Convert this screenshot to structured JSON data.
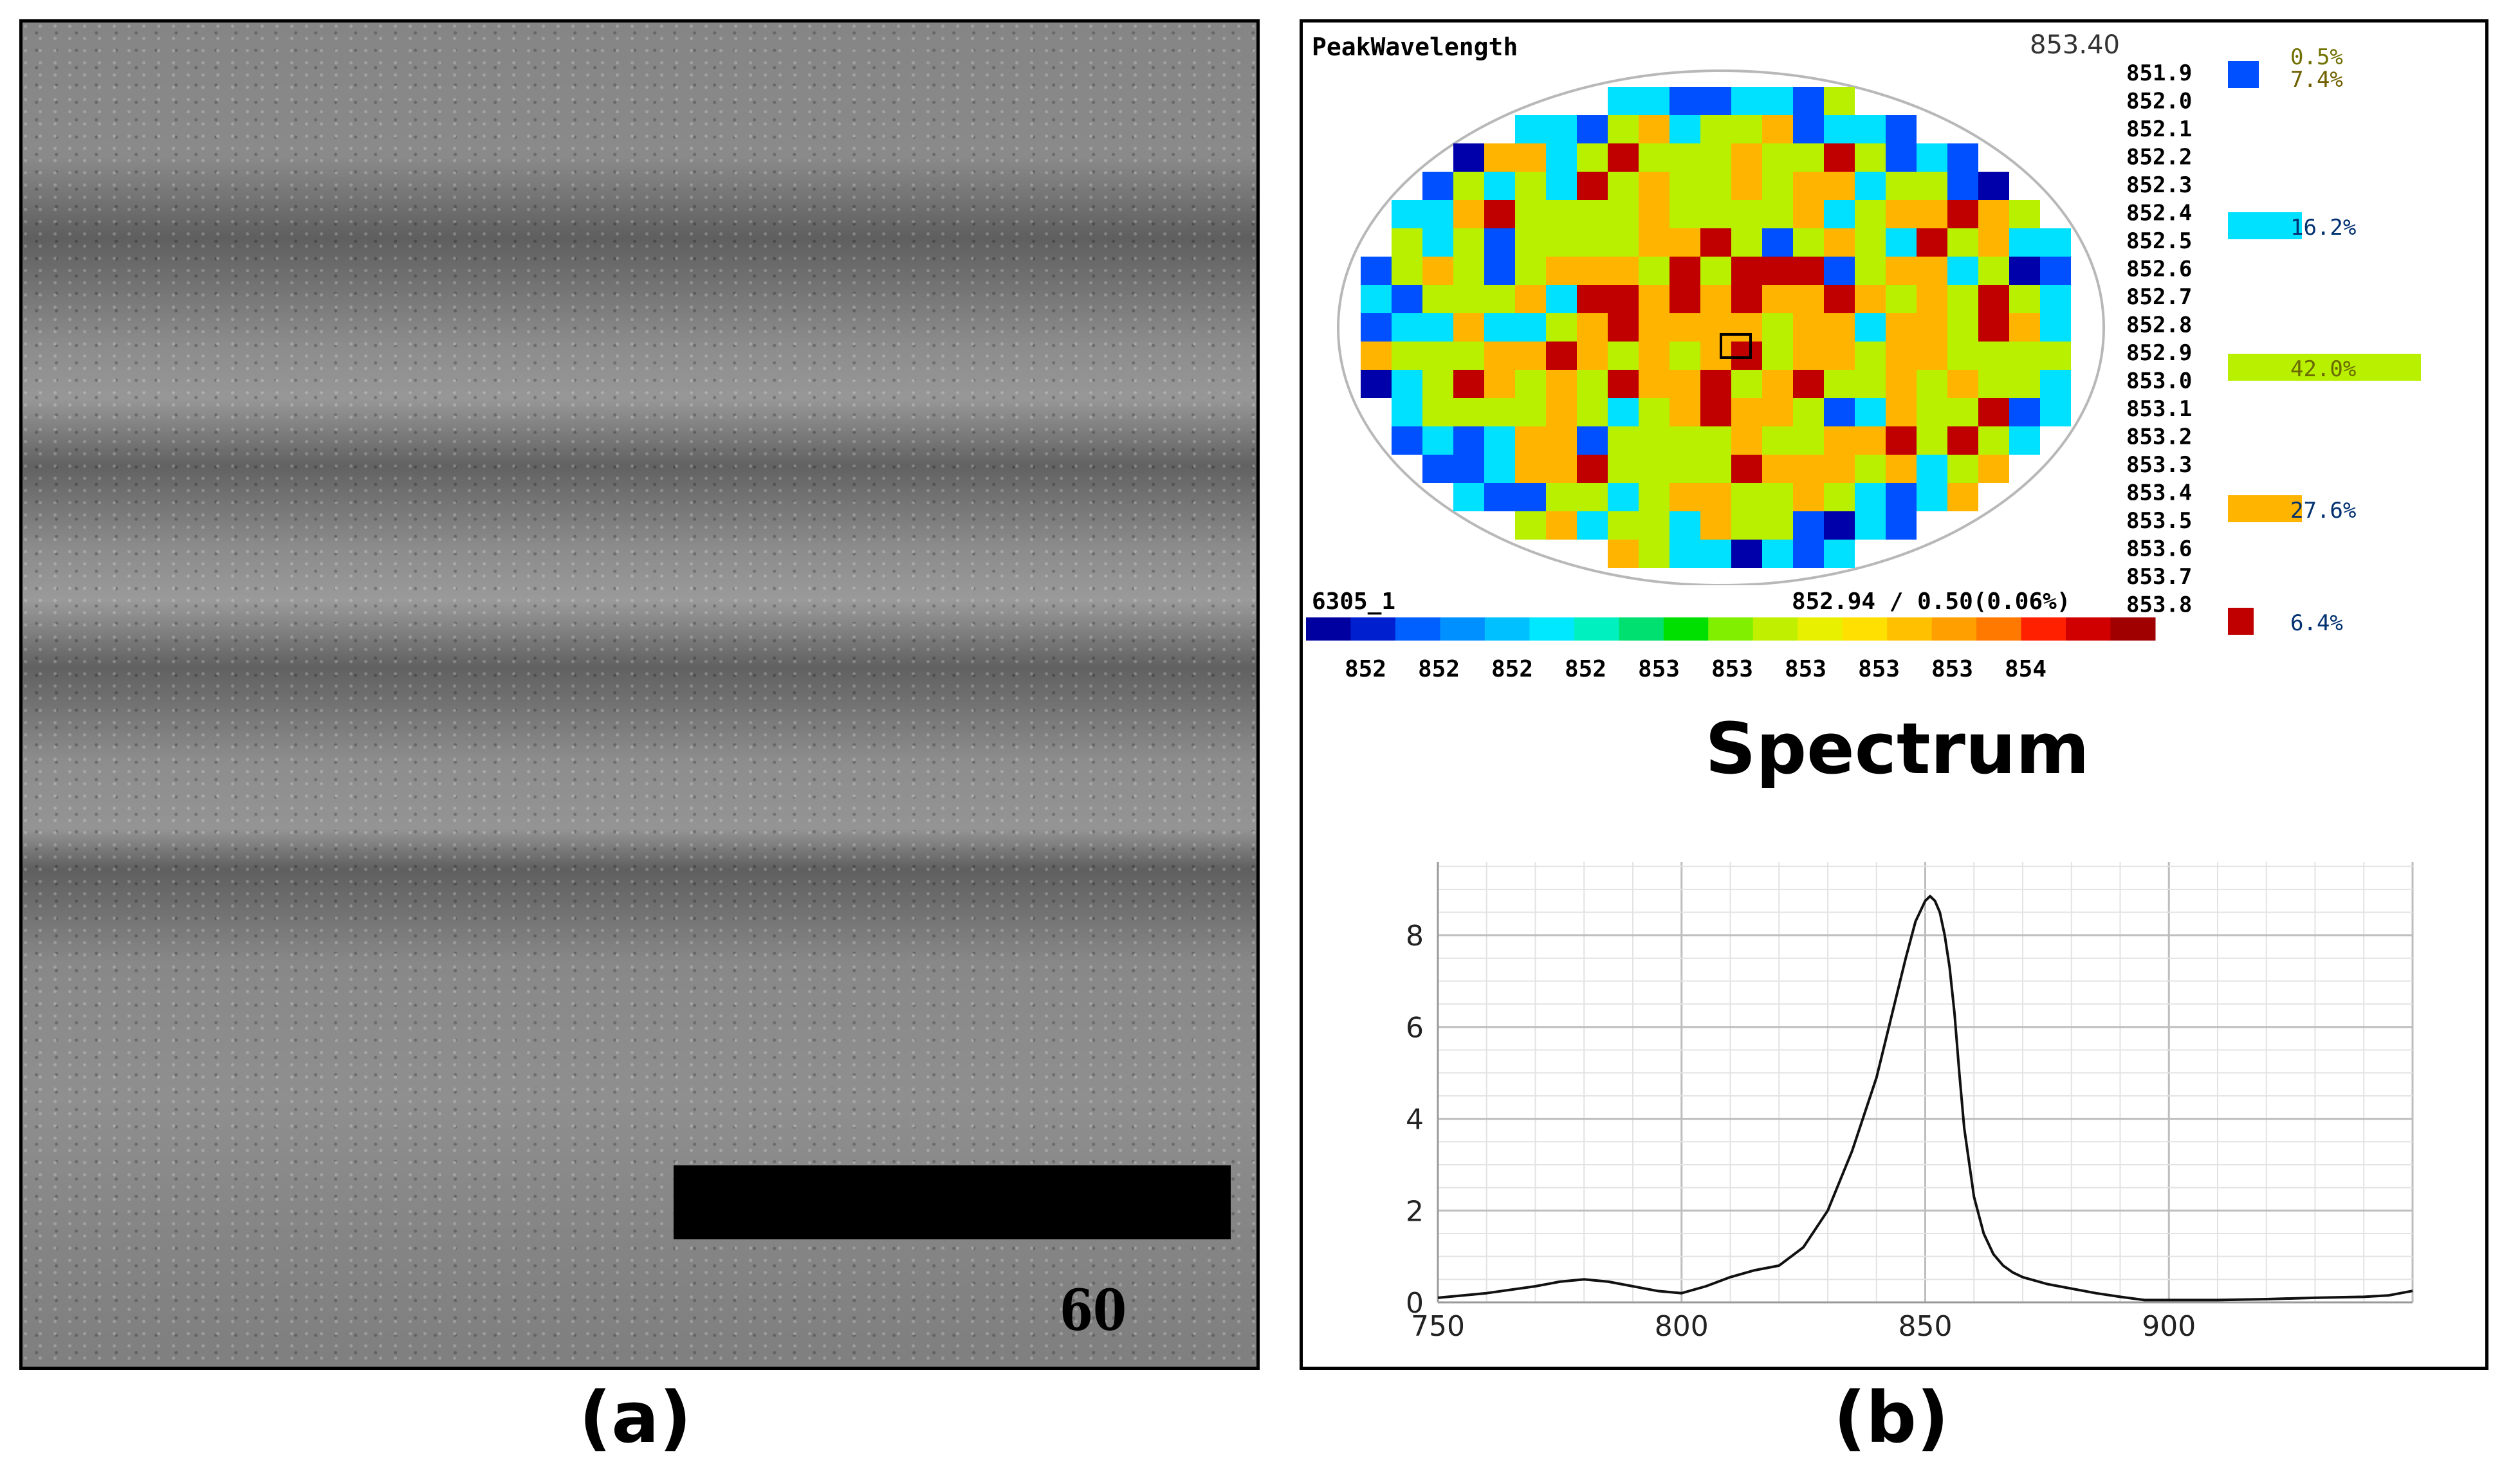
{
  "figure": {
    "panel_a_caption": "(a)",
    "panel_b_caption": "(b)"
  },
  "tem": {
    "scale_bar_label": "60 nm"
  },
  "wafer_map": {
    "title": "PeakWavelength",
    "center_value": "853.40",
    "lot_id": "6305_1",
    "stats": "852.94 / 0.50(0.06%)",
    "legend_values": [
      "851.9",
      "852.0",
      "852.1",
      "852.2",
      "852.3",
      "852.4",
      "852.5",
      "852.6",
      "852.7",
      "852.8",
      "852.9",
      "853.0",
      "853.1",
      "853.2",
      "853.3",
      "853.4",
      "853.5",
      "853.6",
      "853.7",
      "853.8"
    ],
    "bins": [
      {
        "label": "0.5%",
        "color": "#0000aa"
      },
      {
        "label": "7.4%",
        "color": "#0050ff"
      },
      {
        "label": "16.2%",
        "color": "#00e0ff"
      },
      {
        "label": "42.0%",
        "color": "#b8f000"
      },
      {
        "label": "27.6%",
        "color": "#ffb400"
      },
      {
        "label": "6.4%",
        "color": "#c00000"
      }
    ],
    "colorbar_ticks": [
      "852",
      "852",
      "852",
      "852",
      "853",
      "853",
      "853",
      "853",
      "853",
      "854"
    ],
    "colorbar_colors": [
      "#0000a0",
      "#0020d0",
      "#0060ff",
      "#0090ff",
      "#00c0ff",
      "#00e8ff",
      "#00f0c0",
      "#00e070",
      "#00e000",
      "#80f000",
      "#c0f000",
      "#e8f000",
      "#ffe000",
      "#ffc000",
      "#ffa000",
      "#ff7800",
      "#ff2000",
      "#d00000",
      "#a00000"
    ]
  },
  "chart_data": {
    "type": "line",
    "title": "Spectrum",
    "xlabel": "",
    "ylabel": "",
    "xlim": [
      750,
      950
    ],
    "ylim": [
      0,
      9.6
    ],
    "xticks": [
      750,
      800,
      850,
      900
    ],
    "yticks": [
      0,
      2,
      4,
      6,
      8
    ],
    "grid": true,
    "series": [
      {
        "name": "Spectrum",
        "x": [
          750,
          760,
          770,
          775,
          780,
          785,
          790,
          795,
          800,
          805,
          810,
          815,
          820,
          825,
          830,
          835,
          840,
          843,
          846,
          848,
          850,
          851,
          852,
          853,
          854,
          855,
          856,
          857,
          858,
          860,
          862,
          864,
          866,
          868,
          870,
          875,
          880,
          885,
          890,
          895,
          900,
          910,
          920,
          930,
          940,
          945,
          950
        ],
        "y": [
          0.1,
          0.2,
          0.35,
          0.45,
          0.5,
          0.45,
          0.35,
          0.25,
          0.2,
          0.35,
          0.55,
          0.7,
          0.8,
          1.2,
          2.0,
          3.3,
          4.9,
          6.2,
          7.5,
          8.3,
          8.75,
          8.85,
          8.75,
          8.5,
          8.0,
          7.3,
          6.3,
          5.0,
          3.8,
          2.3,
          1.5,
          1.05,
          0.8,
          0.65,
          0.55,
          0.4,
          0.3,
          0.2,
          0.12,
          0.05,
          0.05,
          0.05,
          0.07,
          0.1,
          0.12,
          0.15,
          0.25
        ]
      }
    ]
  }
}
